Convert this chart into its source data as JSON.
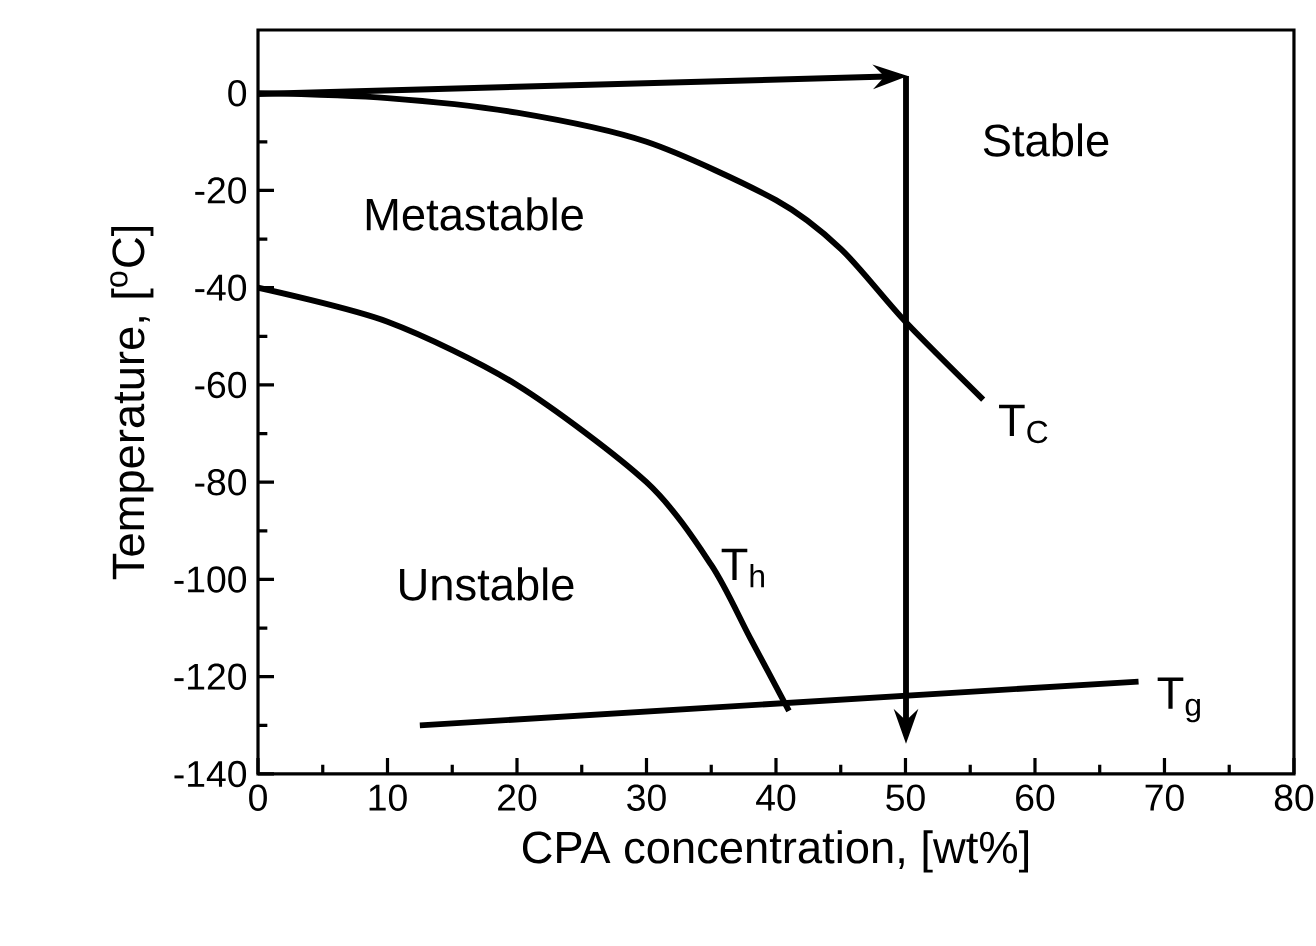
{
  "chart_data": {
    "type": "line",
    "xlabel": "CPA concentration, [wt%]",
    "ylabel": "Temperature, [$^{o}$C]",
    "xlim": [
      0,
      80
    ],
    "xticks": [
      0,
      10,
      20,
      30,
      40,
      50,
      60,
      70,
      80
    ],
    "ylim": [
      -140,
      13
    ],
    "yticks": [
      -140,
      -120,
      -100,
      -80,
      -60,
      -40,
      -20,
      0
    ],
    "marker": "none",
    "line_style": "solid",
    "series": [
      {
        "color": "#000000",
        "x": [
          0,
          10,
          20,
          30,
          40,
          45,
          50,
          56
        ],
        "values": [
          0,
          -1,
          -4,
          -10,
          -22,
          -32,
          -47,
          -63
        ]
      },
      {
        "color": "#000000",
        "x": [
          0,
          10,
          20,
          30,
          35,
          38,
          41
        ],
        "values": [
          -40,
          -47,
          -60,
          -80,
          -97,
          -112,
          -127
        ]
      },
      {
        "color": "#000000",
        "x": [
          12.5,
          68
        ],
        "values": [
          -130,
          -121
        ]
      }
    ],
    "annotations": [
      "Stable",
      "Metastable",
      "Unstable",
      "T$_{C}$",
      "T$_{h}$",
      "T$_{g}$"
    ]
  }
}
